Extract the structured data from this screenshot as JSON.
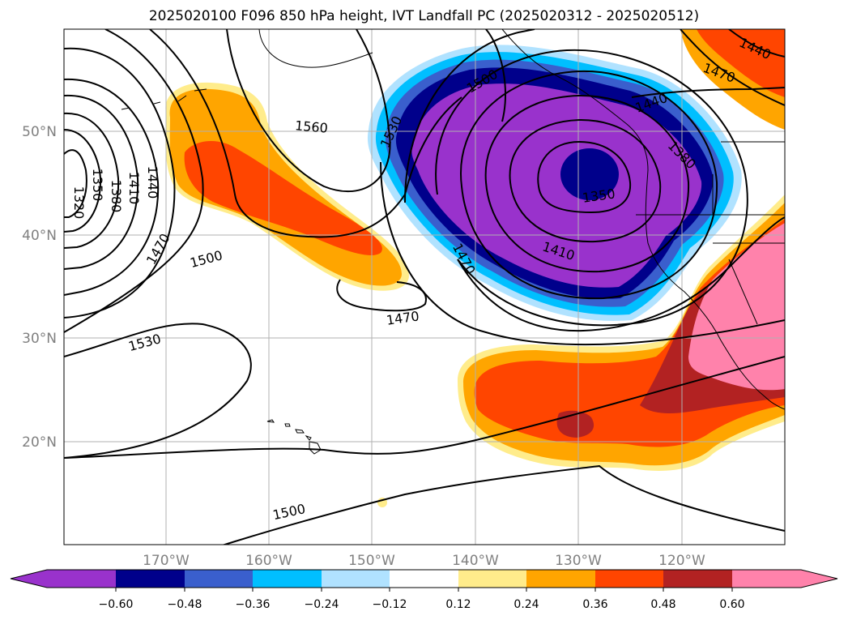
{
  "title": "2025020100 F096 850 hPa height, IVT Landfall PC (2025020312 - 2025020512)",
  "map": {
    "lat_labels": [
      "50°N",
      "40°N",
      "30°N",
      "20°N"
    ],
    "lon_labels": [
      "170°W",
      "160°W",
      "150°W",
      "140°W",
      "130°W",
      "120°W"
    ],
    "contour_labels": [
      "1320",
      "1350",
      "1380",
      "1410",
      "1440",
      "1470",
      "1500",
      "1530",
      "1560",
      "1500",
      "1470",
      "1530",
      "1500",
      "1440",
      "1470",
      "1440",
      "1380",
      "1350",
      "1410",
      "1470",
      "1500"
    ]
  },
  "colorbar": {
    "ticks": [
      "−0.60",
      "−0.48",
      "−0.36",
      "−0.24",
      "−0.12",
      "0.12",
      "0.24",
      "0.36",
      "0.48",
      "0.60"
    ],
    "colors": [
      "#9932cc",
      "#00008b",
      "#3a5fcd",
      "#00bfff",
      "#b0e2ff",
      "#ffffff",
      "#ffec8b",
      "#ffa500",
      "#ff4500",
      "#b22222",
      "#ff82ab"
    ]
  }
}
